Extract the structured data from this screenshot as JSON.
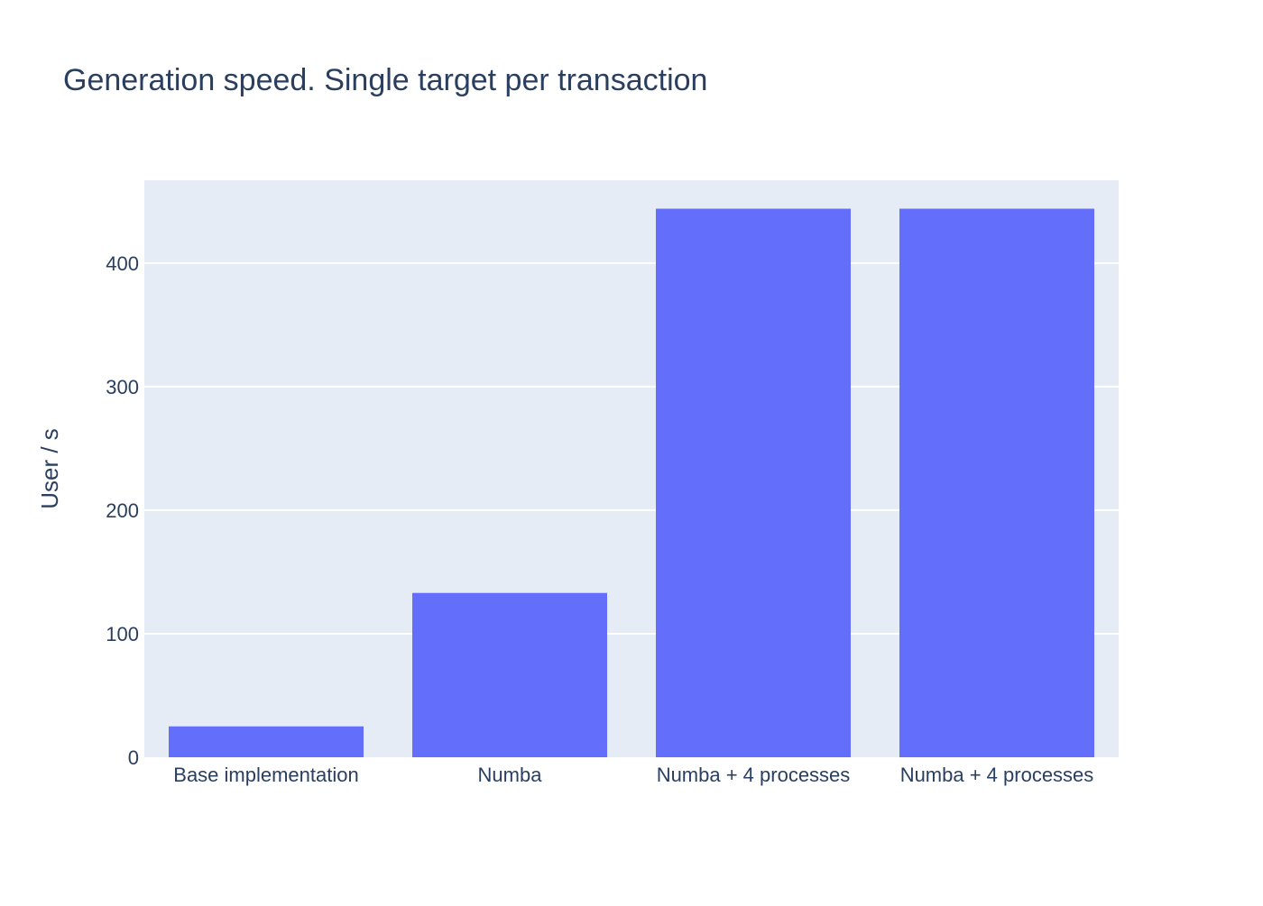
{
  "chart_data": {
    "type": "bar",
    "title": "Generation speed. Single target per transaction",
    "xlabel": "",
    "ylabel": "User / s",
    "categories": [
      "Base implementation",
      "Numba",
      "Numba + 4 processes",
      "Numba + 4 processes"
    ],
    "values": [
      25,
      133,
      444,
      444
    ],
    "ylim": [
      0,
      467
    ],
    "yticks": [
      0,
      100,
      200,
      300,
      400
    ],
    "grid": true,
    "legend": "none",
    "colors": {
      "bar": "#636efa",
      "plot_background": "#e5ecf6",
      "gridline": "#ffffff",
      "text": "#2a3f5f"
    }
  }
}
